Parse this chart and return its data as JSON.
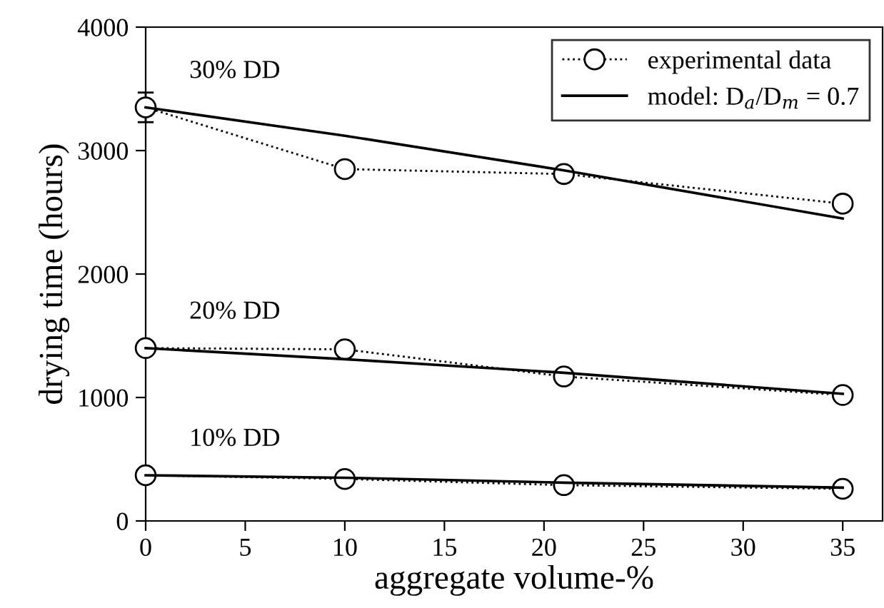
{
  "chart_data": {
    "type": "line",
    "xlabel": "aggregate volume-%",
    "ylabel": "drying time (hours)",
    "xlim": [
      0,
      37
    ],
    "ylim": [
      0,
      4000
    ],
    "xticks": [
      0,
      5,
      10,
      15,
      20,
      25,
      30,
      35
    ],
    "yticks": [
      0,
      1000,
      2000,
      3000,
      4000
    ],
    "grid": false,
    "legend": "top right",
    "series": [
      {
        "name": "experimental data",
        "color": "#000000",
        "x": [
          0,
          10,
          21,
          35
        ],
        "values": [
          3350,
          2850,
          2810,
          2570
        ],
        "errors": [
          120,
          null,
          null,
          null
        ],
        "marker": "circle",
        "line_style": "dotted"
      },
      {
        "name": "model: D$_{a}$/D$_{m}$ = 0.7",
        "color": "#000000",
        "x": [
          0,
          10,
          21,
          35
        ],
        "values": [
          3350,
          3120,
          2840,
          2450
        ],
        "marker": "none",
        "line_style": "solid"
      },
      {
        "color": "#000000",
        "x": [
          0,
          10,
          21,
          35
        ],
        "values": [
          1400,
          1390,
          1170,
          1020
        ],
        "marker": "circle",
        "line_style": "dotted"
      },
      {
        "color": "#000000",
        "x": [
          0,
          10,
          21,
          35
        ],
        "values": [
          1400,
          1310,
          1200,
          1030
        ],
        "marker": "none",
        "line_style": "solid"
      },
      {
        "color": "#000000",
        "x": [
          0,
          10,
          21,
          35
        ],
        "values": [
          370,
          340,
          290,
          260
        ],
        "marker": "circle",
        "line_style": "dotted"
      },
      {
        "color": "#000000",
        "x": [
          0,
          10,
          21,
          35
        ],
        "values": [
          370,
          350,
          310,
          270
        ],
        "marker": "none",
        "line_style": "solid"
      }
    ],
    "annotations": [
      "30% DD",
      "20% DD",
      "10% DD"
    ]
  }
}
